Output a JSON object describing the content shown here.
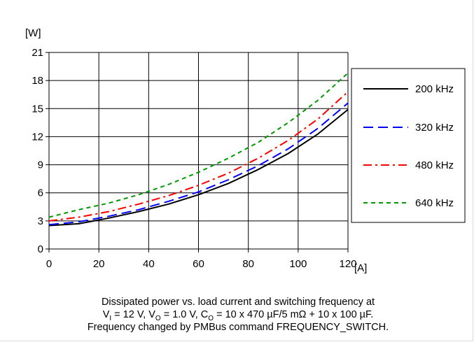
{
  "chart_data": {
    "type": "line",
    "ylabel": "[W]",
    "xlabel": "[A]",
    "xlim": [
      0,
      120
    ],
    "ylim": [
      0,
      21
    ],
    "xticks": [
      0,
      20,
      40,
      60,
      80,
      100,
      120
    ],
    "yticks": [
      0,
      3,
      6,
      9,
      12,
      15,
      18,
      21
    ],
    "grid": true,
    "legend_position": "right",
    "series": [
      {
        "name": "200 kHz",
        "color": "#000000",
        "dash": "solid",
        "x": [
          0,
          12,
          24,
          36,
          48,
          60,
          72,
          84,
          96,
          108,
          120
        ],
        "y": [
          2.5,
          2.7,
          3.3,
          4.0,
          4.8,
          5.8,
          7.0,
          8.5,
          10.2,
          12.3,
          14.9
        ]
      },
      {
        "name": "320 kHz",
        "color": "#0000ff",
        "dash": "long-dash",
        "x": [
          0,
          12,
          24,
          36,
          48,
          60,
          72,
          84,
          96,
          108,
          120
        ],
        "y": [
          2.6,
          2.9,
          3.5,
          4.2,
          5.1,
          6.1,
          7.4,
          8.9,
          10.7,
          12.9,
          15.6
        ]
      },
      {
        "name": "480 kHz",
        "color": "#ff0000",
        "dash": "dash-dot",
        "x": [
          0,
          12,
          24,
          36,
          48,
          60,
          72,
          84,
          96,
          108,
          120
        ],
        "y": [
          3.0,
          3.4,
          4.0,
          4.8,
          5.7,
          6.8,
          8.1,
          9.7,
          11.6,
          13.9,
          16.8
        ]
      },
      {
        "name": "640 kHz",
        "color": "#009900",
        "dash": "short-dash",
        "x": [
          0,
          12,
          24,
          36,
          48,
          60,
          72,
          84,
          96,
          108,
          120
        ],
        "y": [
          3.4,
          4.2,
          4.9,
          5.8,
          6.9,
          8.2,
          9.7,
          11.4,
          13.5,
          15.9,
          18.8
        ]
      }
    ]
  },
  "caption": {
    "line1": "Dissipated power vs. load current and switching frequency at",
    "line2": {
      "v_i": "V",
      "v_i_sub": "I",
      "v_i_val": " = 12 V, ",
      "v_o": "V",
      "v_o_sub": "O",
      "v_o_val": " = 1.0 V, ",
      "c_o": "C",
      "c_o_sub": "O",
      "c_o_val": " = 10 x 470 µF/5 mΩ + 10 x 100 µF."
    },
    "line3": "Frequency changed by PMBus command FREQUENCY_SWITCH."
  }
}
